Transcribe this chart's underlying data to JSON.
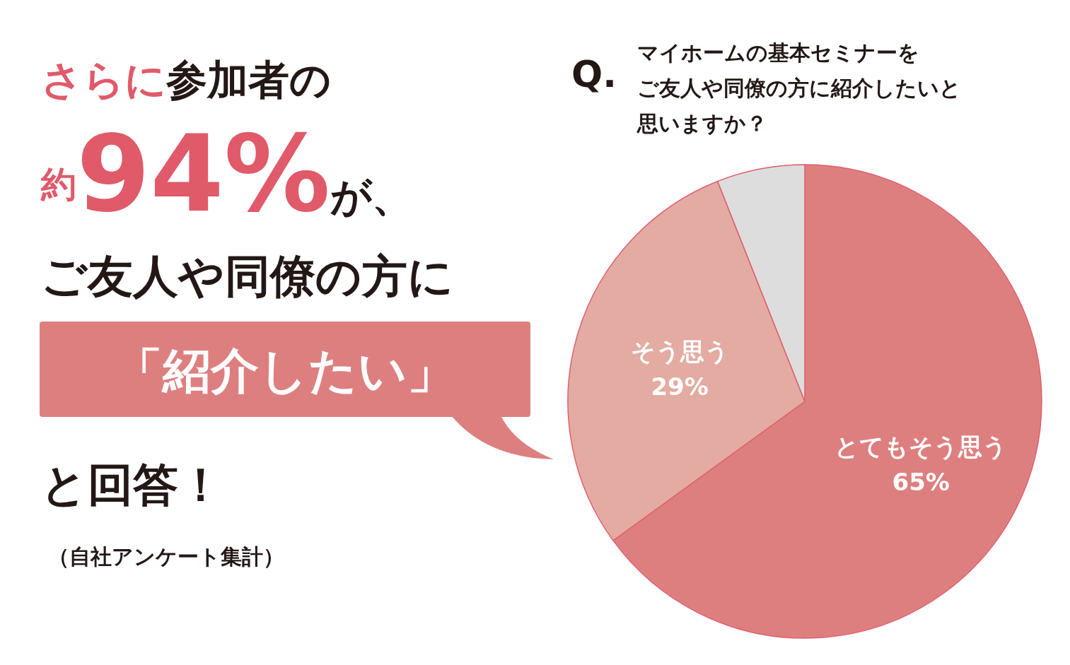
{
  "chart_data": {
    "type": "pie",
    "title": "マイホームの基本セミナーをご友人や同僚の方に紹介したいと思いますか？",
    "categories": [
      "とてもそう思う",
      "そう思う",
      null
    ],
    "values": [
      65,
      29,
      6
    ],
    "colors": [
      "#de7f7f",
      "#e3aba1",
      "#dddddd"
    ],
    "value_labels": [
      "65%",
      "29%",
      null
    ],
    "annotations": [
      "Q.",
      "さらに",
      "参加者の",
      "約",
      "94%",
      "が、",
      "ご友人や同僚の方に",
      "「紹介したい」",
      "と回答！",
      "（自社アンケート集計）"
    ]
  }
}
